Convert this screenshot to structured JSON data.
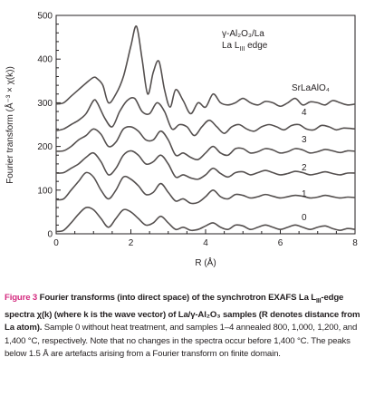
{
  "chart_data": {
    "type": "line",
    "xlabel": "R (Å)",
    "ylabel": "Fourier transform (Å⁻³ × χ(k))",
    "xlim": [
      0,
      8
    ],
    "ylim": [
      0,
      500
    ],
    "xticks": [
      0,
      2,
      4,
      6,
      8
    ],
    "yticks": [
      0,
      100,
      200,
      300,
      400,
      500
    ],
    "annotation": {
      "line1": "γ-Al₂O₃/La",
      "line2_prefix": "La L",
      "line2_sub": "III",
      "line2_suffix": " edge"
    },
    "series": [
      {
        "name": "SrLaAlO4",
        "label": "SrLaAlO₄",
        "x": [
          0,
          0.2,
          0.4,
          0.6,
          0.8,
          1.0,
          1.1,
          1.25,
          1.4,
          1.6,
          1.8,
          2.0,
          2.15,
          2.3,
          2.45,
          2.6,
          2.75,
          2.9,
          3.05,
          3.2,
          3.4,
          3.6,
          3.8,
          4.0,
          4.2,
          4.4,
          4.6,
          4.8,
          5.0,
          5.2,
          5.4,
          5.6,
          5.8,
          6.0,
          6.2,
          6.4,
          6.6,
          6.8,
          7.0,
          7.2,
          7.4,
          7.6,
          7.8,
          8.0
        ],
        "values": [
          297,
          300,
          315,
          330,
          345,
          358,
          355,
          340,
          300,
          320,
          360,
          430,
          475,
          400,
          320,
          370,
          395,
          330,
          290,
          330,
          305,
          275,
          300,
          290,
          320,
          300,
          295,
          300,
          310,
          300,
          295,
          303,
          300,
          292,
          300,
          310,
          295,
          302,
          300,
          295,
          305,
          300,
          295,
          297
        ]
      },
      {
        "name": "4",
        "label": "4",
        "x": [
          0,
          0.2,
          0.4,
          0.6,
          0.8,
          1.0,
          1.1,
          1.3,
          1.5,
          1.7,
          1.9,
          2.1,
          2.3,
          2.5,
          2.7,
          2.9,
          3.1,
          3.3,
          3.5,
          3.7,
          3.9,
          4.1,
          4.3,
          4.5,
          4.7,
          4.9,
          5.1,
          5.3,
          5.5,
          5.7,
          5.9,
          6.1,
          6.3,
          6.5,
          6.7,
          6.9,
          7.1,
          7.3,
          7.5,
          7.7,
          8.0
        ],
        "values": [
          236,
          240,
          250,
          260,
          275,
          305,
          300,
          265,
          245,
          280,
          305,
          310,
          280,
          275,
          300,
          280,
          240,
          250,
          245,
          225,
          245,
          260,
          245,
          230,
          245,
          250,
          240,
          235,
          245,
          250,
          245,
          238,
          248,
          250,
          240,
          238,
          248,
          245,
          238,
          242,
          240
        ]
      },
      {
        "name": "3",
        "label": "3",
        "x": [
          0,
          0.2,
          0.4,
          0.6,
          0.8,
          1.0,
          1.2,
          1.4,
          1.6,
          1.8,
          2.0,
          2.2,
          2.4,
          2.6,
          2.8,
          3.0,
          3.2,
          3.4,
          3.6,
          3.8,
          4.0,
          4.2,
          4.4,
          4.6,
          4.8,
          5.0,
          5.2,
          5.4,
          5.6,
          5.8,
          6.0,
          6.2,
          6.4,
          6.6,
          6.8,
          7.0,
          7.2,
          7.4,
          7.6,
          7.8,
          8.0
        ],
        "values": [
          189,
          190,
          200,
          215,
          225,
          240,
          228,
          200,
          210,
          240,
          245,
          235,
          215,
          215,
          235,
          215,
          180,
          185,
          175,
          170,
          185,
          200,
          185,
          180,
          195,
          195,
          185,
          188,
          195,
          192,
          185,
          188,
          195,
          192,
          185,
          188,
          193,
          190,
          186,
          190,
          189
        ]
      },
      {
        "name": "2",
        "label": "2",
        "x": [
          0,
          0.2,
          0.4,
          0.6,
          0.8,
          1.0,
          1.2,
          1.4,
          1.6,
          1.8,
          2.0,
          2.2,
          2.4,
          2.6,
          2.8,
          3.0,
          3.2,
          3.4,
          3.6,
          3.8,
          4.0,
          4.2,
          4.4,
          4.6,
          4.8,
          5.0,
          5.2,
          5.4,
          5.6,
          5.8,
          6.0,
          6.2,
          6.4,
          6.6,
          6.8,
          7.0,
          7.2,
          7.4,
          7.6,
          7.8,
          8.0
        ],
        "values": [
          139,
          140,
          150,
          160,
          175,
          185,
          165,
          135,
          150,
          180,
          190,
          180,
          160,
          165,
          180,
          160,
          130,
          135,
          128,
          125,
          135,
          150,
          138,
          130,
          140,
          142,
          135,
          140,
          145,
          140,
          135,
          138,
          143,
          140,
          135,
          138,
          142,
          138,
          135,
          139,
          139
        ]
      },
      {
        "name": "1",
        "label": "1",
        "x": [
          0,
          0.2,
          0.4,
          0.6,
          0.8,
          1.0,
          1.2,
          1.4,
          1.6,
          1.8,
          2.0,
          2.2,
          2.4,
          2.6,
          2.8,
          3.0,
          3.2,
          3.4,
          3.6,
          3.8,
          4.0,
          4.2,
          4.4,
          4.6,
          4.8,
          5.0,
          5.2,
          5.4,
          5.6,
          5.8,
          6.0,
          6.2,
          6.4,
          6.6,
          6.8,
          7.0,
          7.2,
          7.4,
          7.6,
          7.8,
          8.0
        ],
        "values": [
          78,
          80,
          100,
          120,
          140,
          130,
          100,
          80,
          100,
          130,
          125,
          110,
          90,
          95,
          115,
          95,
          75,
          80,
          70,
          72,
          85,
          100,
          85,
          80,
          90,
          88,
          82,
          85,
          90,
          86,
          82,
          85,
          88,
          86,
          82,
          84,
          88,
          85,
          82,
          84,
          83
        ]
      },
      {
        "name": "0",
        "label": "0",
        "x": [
          0,
          0.2,
          0.4,
          0.6,
          0.8,
          1.0,
          1.2,
          1.4,
          1.6,
          1.8,
          2.0,
          2.2,
          2.4,
          2.6,
          2.8,
          3.0,
          3.2,
          3.4,
          3.6,
          3.8,
          4.0,
          4.2,
          4.4,
          4.6,
          4.8,
          5.0,
          5.2,
          5.4,
          5.6,
          5.8,
          6.0,
          6.2,
          6.4,
          6.6,
          6.8,
          7.0,
          7.2,
          7.4,
          7.6,
          7.8,
          8.0
        ],
        "values": [
          5,
          8,
          25,
          45,
          60,
          55,
          35,
          15,
          35,
          55,
          50,
          35,
          20,
          25,
          40,
          25,
          10,
          15,
          8,
          10,
          18,
          25,
          15,
          10,
          20,
          18,
          10,
          15,
          20,
          15,
          10,
          15,
          20,
          15,
          10,
          15,
          18,
          12,
          8,
          12,
          10
        ]
      }
    ]
  },
  "caption": {
    "fig_label": "Figure 3",
    "bold_text": " Fourier transforms (into direct space) of the synchrotron EXAFS La L",
    "bold_sub": "III",
    "bold_text2": "-edge spectra χ(k) (where k is the wave vector) of La/γ-Al₂O₃ samples (R denotes distance from La atom).",
    "body_text": " Sample 0 without heat treatment, and samples 1–4 annealed 800, 1,000, 1,200, and 1,400 °C, respectively. Note that no changes in the spectra occur before 1,400 °C. The peaks below 1.5 Å are artefacts arising from a Fourier transform on finite domain."
  },
  "colors": {
    "line": "#55504f",
    "axis": "#231f20",
    "figure_label": "#d42a7f"
  }
}
